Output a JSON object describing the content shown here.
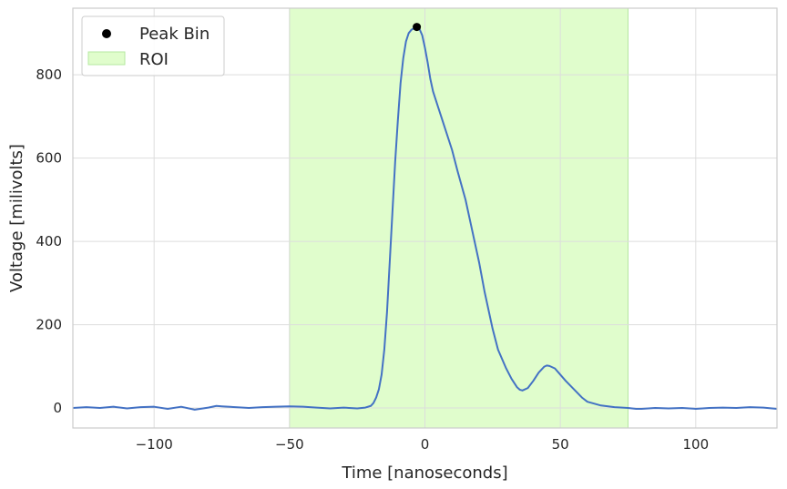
{
  "chart_data": {
    "type": "line",
    "xlabel": "Time [nanoseconds]",
    "ylabel": "Voltage [milivolts]",
    "xlim": [
      -130,
      130
    ],
    "ylim": [
      -48,
      960
    ],
    "x_ticks": [
      -100,
      -50,
      0,
      50,
      100
    ],
    "y_ticks": [
      0,
      200,
      400,
      600,
      800
    ],
    "x_tick_labels": [
      "−100",
      "−50",
      "0",
      "50",
      "100"
    ],
    "y_tick_labels": [
      "0",
      "200",
      "400",
      "600",
      "800"
    ],
    "grid": true,
    "legend_position": "top-left",
    "colors": {
      "line": "#4472c4",
      "roi_fill": "#e0fdcc",
      "roi_edge": "#b6e8a0",
      "peak": "#000000",
      "grid": "#dddddd",
      "spine": "#cccccc"
    },
    "roi": {
      "label": "ROI",
      "x_start": -50,
      "x_end": 75
    },
    "peak": {
      "label": "Peak Bin",
      "x": -3,
      "y": 915
    },
    "series": [
      {
        "x": [
          -130,
          -125,
          -120,
          -115,
          -110,
          -105,
          -100,
          -95,
          -90,
          -85,
          -80,
          -77,
          -75,
          -70,
          -65,
          -60,
          -55,
          -50,
          -45,
          -40,
          -35,
          -30,
          -25,
          -22,
          -20,
          -19,
          -18,
          -17,
          -16,
          -15,
          -14,
          -13,
          -12,
          -11,
          -10,
          -9,
          -8,
          -7,
          -6,
          -5,
          -4,
          -3,
          -2,
          -1,
          0,
          1,
          2,
          3,
          5,
          7,
          10,
          12,
          15,
          17,
          20,
          22,
          25,
          27,
          30,
          32,
          34,
          35,
          36,
          38,
          40,
          42,
          44,
          45,
          46,
          48,
          50,
          52,
          55,
          58,
          60,
          65,
          70,
          75,
          78,
          80,
          85,
          90,
          95,
          100,
          105,
          110,
          115,
          120,
          125,
          130
        ],
        "y": [
          0,
          2,
          0,
          3,
          -1,
          2,
          3,
          -2,
          3,
          -4,
          1,
          5,
          4,
          2,
          0,
          2,
          3,
          4,
          3,
          1,
          -1,
          1,
          -1,
          1,
          5,
          12,
          25,
          45,
          80,
          140,
          230,
          350,
          470,
          590,
          690,
          780,
          840,
          880,
          900,
          908,
          912,
          915,
          910,
          895,
          865,
          830,
          790,
          760,
          720,
          680,
          620,
          570,
          500,
          440,
          350,
          280,
          190,
          140,
          95,
          70,
          50,
          44,
          42,
          48,
          65,
          85,
          99,
          102,
          101,
          95,
          80,
          65,
          45,
          25,
          15,
          6,
          2,
          0,
          -2,
          -2,
          0,
          -1,
          0,
          -2,
          0,
          1,
          0,
          2,
          1,
          -2
        ]
      }
    ],
    "legend": [
      {
        "label": "Peak Bin",
        "kind": "marker"
      },
      {
        "label": "ROI",
        "kind": "patch"
      }
    ]
  }
}
